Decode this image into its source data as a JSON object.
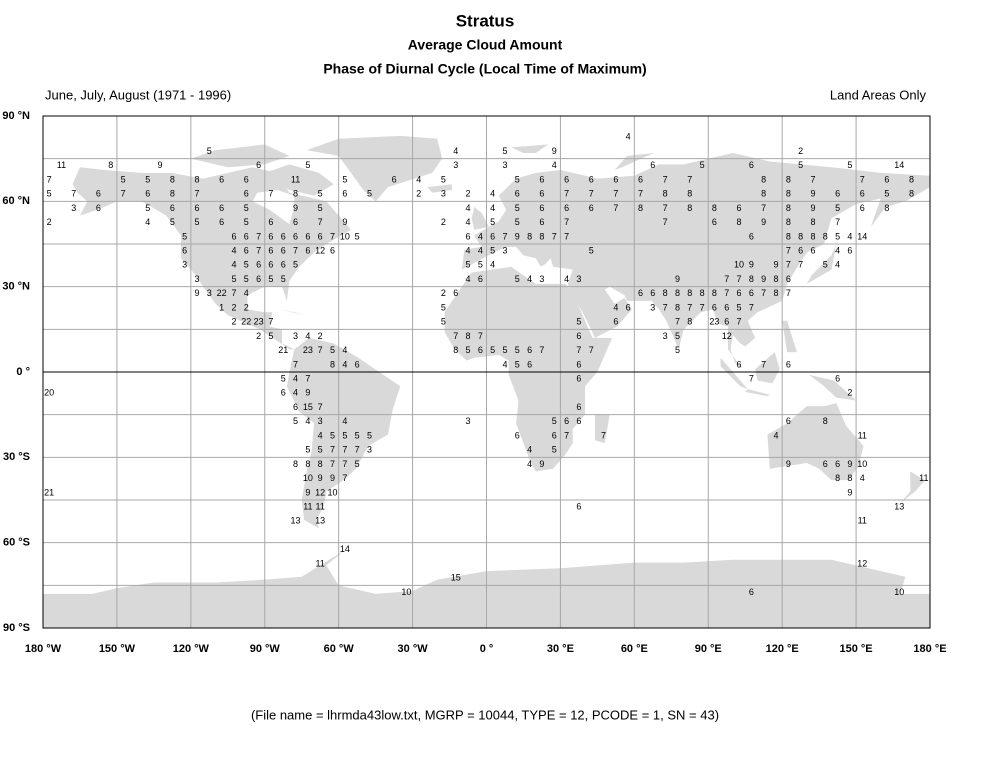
{
  "chart_data": {
    "type": "map",
    "title": "Stratus",
    "subtitle": "Average Cloud Amount",
    "subtitle2": "Phase of Diurnal Cycle (Local Time of Maximum)",
    "period": "June, July, August (1971 - 1996)",
    "coverage": "Land Areas Only",
    "footer": "(File name = lhrmda43low.txt, MGRP = 10044, TYPE = 12, PCODE = 1, SN = 43)",
    "xlim": [
      -180,
      180
    ],
    "ylim": [
      -90,
      90
    ],
    "xticks": [
      {
        "value": -180,
        "label": "180 °W"
      },
      {
        "value": -150,
        "label": "150 °W"
      },
      {
        "value": -120,
        "label": "120 °W"
      },
      {
        "value": -90,
        "label": "90 °W"
      },
      {
        "value": -60,
        "label": "60 °W"
      },
      {
        "value": -30,
        "label": "30 °W"
      },
      {
        "value": 0,
        "label": "0 °"
      },
      {
        "value": 30,
        "label": "30 °E"
      },
      {
        "value": 60,
        "label": "60 °E"
      },
      {
        "value": 90,
        "label": "90 °E"
      },
      {
        "value": 120,
        "label": "120 °E"
      },
      {
        "value": 150,
        "label": "150 °E"
      },
      {
        "value": 180,
        "label": "180 °E"
      }
    ],
    "yticks": [
      {
        "value": 90,
        "label": "90 °N"
      },
      {
        "value": 60,
        "label": "60 °N"
      },
      {
        "value": 30,
        "label": "30 °N"
      },
      {
        "value": 0,
        "label": "0 °"
      },
      {
        "value": -30,
        "label": "30 °S"
      },
      {
        "value": -60,
        "label": "60 °S"
      },
      {
        "value": -90,
        "label": "90 °S"
      }
    ],
    "ygrid_minor": [
      75,
      45,
      15,
      -15,
      -45,
      -75
    ],
    "grid": true,
    "land_color": "#d9d9d9",
    "rows": [
      {
        "lat": 82.5,
        "lon": [
          57.5
        ],
        "values": [
          4
        ]
      },
      {
        "lat": 77.5,
        "lon": [
          -112.5,
          -12.5,
          7.5,
          27.5,
          127.5
        ],
        "values": [
          5,
          4,
          5,
          9,
          2
        ]
      },
      {
        "lat": 72.5,
        "lon": [
          -172.5,
          -152.5,
          -132.5,
          -92.5,
          -72.5,
          -12.5,
          7.5,
          27.5,
          67.5,
          87.5,
          107.5,
          127.5,
          147.5,
          167.5
        ],
        "values": [
          11,
          8,
          9,
          6,
          5,
          3,
          3,
          4,
          6,
          5,
          6,
          5,
          5,
          14
        ]
      },
      {
        "lat": 67.5,
        "lon": [
          -177.5,
          -147.5,
          -137.5,
          -127.5,
          -117.5,
          -107.5,
          -97.5,
          -77.5,
          -57.5,
          -37.5,
          -27.5,
          -17.5,
          12.5,
          22.5,
          32.5,
          42.5,
          52.5,
          62.5,
          72.5,
          82.5,
          112.5,
          122.5,
          132.5,
          152.5,
          162.5,
          172.5
        ],
        "values": [
          7,
          5,
          5,
          8,
          8,
          6,
          6,
          11,
          5,
          6,
          4,
          5,
          5,
          6,
          6,
          6,
          6,
          6,
          7,
          7,
          8,
          8,
          7,
          7,
          6,
          8
        ]
      },
      {
        "lat": 62.5,
        "lon": [
          -177.5,
          -167.5,
          -157.5,
          -147.5,
          -137.5,
          -127.5,
          -117.5,
          -97.5,
          -87.5,
          -77.5,
          -67.5,
          -57.5,
          -47.5,
          -27.5,
          -17.5,
          -7.5,
          2.5,
          12.5,
          22.5,
          32.5,
          42.5,
          52.5,
          62.5,
          72.5,
          82.5,
          112.5,
          122.5,
          132.5,
          142.5,
          152.5,
          162.5,
          172.5
        ],
        "values": [
          5,
          7,
          6,
          7,
          6,
          8,
          7,
          6,
          7,
          8,
          5,
          6,
          5,
          2,
          3,
          2,
          4,
          6,
          6,
          7,
          7,
          7,
          7,
          8,
          8,
          8,
          8,
          9,
          6,
          6,
          5,
          8
        ]
      },
      {
        "lat": 57.5,
        "lon": [
          -167.5,
          -157.5,
          -137.5,
          -127.5,
          -117.5,
          -107.5,
          -97.5,
          -77.5,
          -67.5,
          -7.5,
          2.5,
          12.5,
          22.5,
          32.5,
          42.5,
          52.5,
          62.5,
          72.5,
          82.5,
          92.5,
          102.5,
          112.5,
          122.5,
          132.5,
          142.5,
          152.5,
          162.5
        ],
        "values": [
          3,
          6,
          5,
          6,
          6,
          6,
          5,
          9,
          5,
          4,
          4,
          5,
          6,
          6,
          6,
          7,
          8,
          7,
          8,
          8,
          6,
          7,
          8,
          9,
          5,
          6,
          8
        ]
      },
      {
        "lat": 52.5,
        "lon": [
          -177.5,
          -137.5,
          -127.5,
          -117.5,
          -107.5,
          -97.5,
          -87.5,
          -77.5,
          -67.5,
          -57.5,
          -17.5,
          -7.5,
          2.5,
          12.5,
          22.5,
          32.5,
          72.5,
          92.5,
          102.5,
          112.5,
          122.5,
          132.5,
          142.5
        ],
        "values": [
          2,
          4,
          5,
          5,
          6,
          5,
          6,
          6,
          7,
          9,
          2,
          4,
          5,
          5,
          6,
          7,
          7,
          6,
          8,
          9,
          8,
          8,
          7
        ]
      },
      {
        "lat": 47.5,
        "lon": [
          -122.5,
          -102.5,
          -97.5,
          -92.5,
          -87.5,
          -82.5,
          -77.5,
          -72.5,
          -67.5,
          -62.5,
          -57.5,
          -52.5,
          -7.5,
          -2.5,
          2.5,
          7.5,
          12.5,
          17.5,
          22.5,
          27.5,
          32.5,
          107.5,
          122.5,
          127.5,
          132.5,
          137.5,
          142.5,
          147.5,
          152.5
        ],
        "values": [
          5,
          6,
          6,
          7,
          6,
          6,
          6,
          6,
          6,
          7,
          10,
          5,
          6,
          4,
          6,
          7,
          9,
          8,
          8,
          7,
          7,
          6,
          8,
          8,
          8,
          8,
          5,
          4,
          14
        ]
      },
      {
        "lat": 42.5,
        "lon": [
          -122.5,
          -102.5,
          -97.5,
          -92.5,
          -87.5,
          -82.5,
          -77.5,
          -72.5,
          -67.5,
          -62.5,
          -7.5,
          -2.5,
          2.5,
          7.5,
          42.5,
          122.5,
          127.5,
          132.5,
          142.5,
          147.5
        ],
        "values": [
          6,
          4,
          6,
          7,
          6,
          6,
          7,
          6,
          12,
          6,
          4,
          4,
          5,
          3,
          5,
          7,
          6,
          6,
          4,
          6
        ]
      },
      {
        "lat": 37.5,
        "lon": [
          -122.5,
          -102.5,
          -97.5,
          -92.5,
          -87.5,
          -82.5,
          -77.5,
          -7.5,
          -2.5,
          2.5,
          102.5,
          107.5,
          117.5,
          122.5,
          127.5,
          137.5,
          142.5
        ],
        "values": [
          3,
          4,
          5,
          6,
          6,
          6,
          5,
          5,
          5,
          4,
          10,
          9,
          9,
          7,
          7,
          5,
          4
        ]
      },
      {
        "lat": 32.5,
        "lon": [
          -117.5,
          -102.5,
          -97.5,
          -92.5,
          -87.5,
          -82.5,
          -7.5,
          -2.5,
          12.5,
          17.5,
          22.5,
          32.5,
          37.5,
          77.5,
          97.5,
          102.5,
          107.5,
          112.5,
          117.5,
          122.5
        ],
        "values": [
          3,
          5,
          5,
          6,
          5,
          5,
          4,
          6,
          5,
          4,
          3,
          4,
          3,
          9,
          7,
          7,
          8,
          9,
          8,
          6
        ]
      },
      {
        "lat": 27.5,
        "lon": [
          -117.5,
          -112.5,
          -107.5,
          -102.5,
          -97.5,
          -17.5,
          -12.5,
          62.5,
          67.5,
          72.5,
          77.5,
          82.5,
          87.5,
          92.5,
          97.5,
          102.5,
          107.5,
          112.5,
          117.5,
          122.5
        ],
        "values": [
          9,
          3,
          22,
          7,
          4,
          2,
          6,
          6,
          6,
          8,
          8,
          8,
          8,
          8,
          7,
          6,
          6,
          7,
          8,
          7
        ]
      },
      {
        "lat": 22.5,
        "lon": [
          -107.5,
          -102.5,
          -97.5,
          -17.5,
          52.5,
          57.5,
          67.5,
          72.5,
          77.5,
          82.5,
          87.5,
          92.5,
          97.5,
          102.5,
          107.5
        ],
        "values": [
          1,
          2,
          2,
          5,
          4,
          6,
          3,
          7,
          8,
          7,
          7,
          6,
          6,
          5,
          7
        ]
      },
      {
        "lat": 17.5,
        "lon": [
          -102.5,
          -97.5,
          -92.5,
          -87.5,
          -17.5,
          37.5,
          52.5,
          77.5,
          82.5,
          92.5,
          97.5,
          102.5
        ],
        "values": [
          2,
          22,
          23,
          7,
          5,
          5,
          6,
          7,
          8,
          23,
          6,
          7
        ]
      },
      {
        "lat": 12.5,
        "lon": [
          -92.5,
          -87.5,
          -77.5,
          -72.5,
          -67.5,
          -12.5,
          -7.5,
          -2.5,
          37.5,
          72.5,
          77.5,
          97.5
        ],
        "values": [
          2,
          5,
          3,
          4,
          2,
          7,
          8,
          7,
          6,
          3,
          5,
          12
        ]
      },
      {
        "lat": 7.5,
        "lon": [
          -82.5,
          -72.5,
          -67.5,
          -62.5,
          -57.5,
          -12.5,
          -7.5,
          -2.5,
          2.5,
          7.5,
          12.5,
          17.5,
          22.5,
          37.5,
          42.5,
          77.5
        ],
        "values": [
          21,
          23,
          7,
          5,
          4,
          8,
          5,
          6,
          5,
          5,
          5,
          6,
          7,
          7,
          7,
          5
        ]
      },
      {
        "lat": 2.5,
        "lon": [
          -77.5,
          -62.5,
          -57.5,
          -52.5,
          7.5,
          12.5,
          17.5,
          37.5,
          102.5,
          112.5,
          122.5
        ],
        "values": [
          7,
          8,
          4,
          6,
          4,
          5,
          6,
          6,
          6,
          7,
          6
        ]
      },
      {
        "lat": -2.5,
        "lon": [
          -82.5,
          -77.5,
          -72.5,
          37.5,
          107.5,
          142.5
        ],
        "values": [
          5,
          4,
          7,
          6,
          7,
          6
        ]
      },
      {
        "lat": -7.5,
        "lon": [
          -177.5,
          -82.5,
          -77.5,
          -72.5,
          147.5
        ],
        "values": [
          20,
          6,
          4,
          9,
          2
        ]
      },
      {
        "lat": -12.5,
        "lon": [
          -77.5,
          -72.5,
          -67.5,
          37.5
        ],
        "values": [
          6,
          15,
          7,
          6
        ]
      },
      {
        "lat": -17.5,
        "lon": [
          -77.5,
          -72.5,
          -67.5,
          -57.5,
          -7.5,
          27.5,
          32.5,
          37.5,
          122.5,
          137.5
        ],
        "values": [
          5,
          4,
          3,
          4,
          3,
          5,
          6,
          6,
          6,
          8
        ]
      },
      {
        "lat": -22.5,
        "lon": [
          -67.5,
          -62.5,
          -57.5,
          -52.5,
          -47.5,
          12.5,
          27.5,
          32.5,
          47.5,
          117.5,
          152.5
        ],
        "values": [
          4,
          5,
          5,
          5,
          5,
          6,
          6,
          7,
          7,
          4,
          11
        ]
      },
      {
        "lat": -27.5,
        "lon": [
          -72.5,
          -67.5,
          -62.5,
          -57.5,
          -52.5,
          -47.5,
          17.5,
          27.5
        ],
        "values": [
          5,
          5,
          7,
          7,
          7,
          3,
          4,
          5
        ]
      },
      {
        "lat": -32.5,
        "lon": [
          -77.5,
          -72.5,
          -67.5,
          -62.5,
          -57.5,
          -52.5,
          17.5,
          22.5,
          122.5,
          137.5,
          142.5,
          147.5,
          152.5
        ],
        "values": [
          8,
          8,
          8,
          7,
          7,
          5,
          4,
          9,
          9,
          6,
          6,
          9,
          10
        ]
      },
      {
        "lat": -37.5,
        "lon": [
          -72.5,
          -67.5,
          -62.5,
          -57.5,
          142.5,
          147.5,
          152.5,
          177.5
        ],
        "values": [
          10,
          9,
          9,
          7,
          8,
          8,
          4,
          11
        ]
      },
      {
        "lat": -42.5,
        "lon": [
          -177.5,
          -72.5,
          -67.5,
          -62.5,
          147.5
        ],
        "values": [
          21,
          9,
          12,
          10,
          9
        ]
      },
      {
        "lat": -47.5,
        "lon": [
          -72.5,
          -67.5,
          37.5,
          167.5
        ],
        "values": [
          11,
          11,
          6,
          13
        ]
      },
      {
        "lat": -52.5,
        "lon": [
          -77.5,
          -67.5,
          152.5
        ],
        "values": [
          13,
          13,
          11
        ]
      },
      {
        "lat": -62.5,
        "lon": [
          -57.5
        ],
        "values": [
          14
        ]
      },
      {
        "lat": -67.5,
        "lon": [
          -67.5,
          152.5
        ],
        "values": [
          11,
          12
        ]
      },
      {
        "lat": -72.5,
        "lon": [
          -12.5
        ],
        "values": [
          15
        ]
      },
      {
        "lat": -77.5,
        "lon": [
          -32.5,
          107.5,
          167.5
        ],
        "values": [
          10,
          6,
          10
        ]
      }
    ]
  }
}
